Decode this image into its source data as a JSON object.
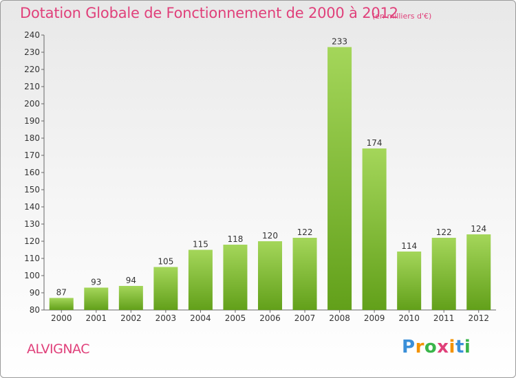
{
  "chart_data": {
    "type": "bar",
    "title": "Dotation Globale de Fonctionnement de 2000 à 2012",
    "subtitle": "(en milliers d'€)",
    "categories": [
      "2000",
      "2001",
      "2002",
      "2003",
      "2004",
      "2005",
      "2006",
      "2007",
      "2008",
      "2009",
      "2010",
      "2011",
      "2012"
    ],
    "values": [
      87,
      93,
      94,
      105,
      115,
      118,
      120,
      122,
      233,
      174,
      114,
      122,
      124
    ],
    "ylim": [
      80,
      240
    ],
    "yticks": [
      80,
      90,
      100,
      110,
      120,
      130,
      140,
      150,
      160,
      170,
      180,
      190,
      200,
      210,
      220,
      230,
      240
    ],
    "grid": false,
    "bar_color": "#8cc63f",
    "xlabel": "",
    "ylabel": ""
  },
  "commune": "ALVIGNAC",
  "logo": {
    "letters": [
      "P",
      "r",
      "o",
      "x",
      "i",
      "t",
      "i"
    ],
    "colors": [
      "#3a8fd8",
      "#f39200",
      "#3ab54a",
      "#e0407a",
      "#f39200",
      "#3a8fd8",
      "#3ab54a"
    ]
  },
  "colors": {
    "accent": "#e0407a",
    "axis": "#555555"
  }
}
